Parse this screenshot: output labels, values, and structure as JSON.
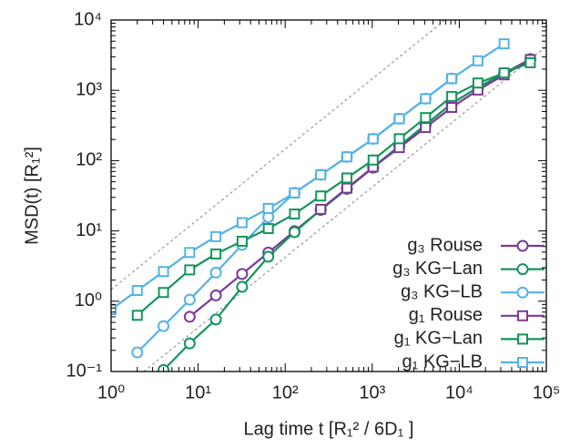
{
  "chart_data": {
    "type": "line",
    "xlabel": "Lag time t  [R₁² / 6D₁ ]",
    "ylabel": "MSD(t)  [R₁²]",
    "xscale": "log",
    "yscale": "log",
    "xlim": [
      1,
      100000
    ],
    "ylim": [
      0.1,
      10000
    ],
    "xticks": [
      {
        "value": 1,
        "label": "10⁰"
      },
      {
        "value": 10,
        "label": "10¹"
      },
      {
        "value": 100,
        "label": "10²"
      },
      {
        "value": 1000,
        "label": "10³"
      },
      {
        "value": 10000,
        "label": "10⁴"
      },
      {
        "value": 100000,
        "label": "10⁵"
      }
    ],
    "yticks": [
      {
        "value": 0.1,
        "label": "10⁻¹"
      },
      {
        "value": 1,
        "label": "10⁰"
      },
      {
        "value": 10,
        "label": "10¹"
      },
      {
        "value": 100,
        "label": "10²"
      },
      {
        "value": 1000,
        "label": "10³"
      },
      {
        "value": 10000,
        "label": "10⁴"
      }
    ],
    "legend": "right",
    "series": [
      {
        "name": "g₃ Rouse",
        "color": "#7b3a98",
        "marker": "circle",
        "x": [
          8,
          16,
          32,
          64,
          128,
          256,
          512,
          1024,
          2048,
          4096,
          8192,
          16384,
          32768,
          65536
        ],
        "values": [
          0.6,
          1.21,
          2.44,
          4.92,
          9.93,
          19.9,
          39.7,
          79.4,
          160,
          322,
          649,
          1100,
          1750,
          2780
        ]
      },
      {
        "name": "g₃ KG−Lan",
        "color": "#14955a",
        "marker": "circle",
        "x": [
          4,
          8,
          16,
          32,
          64,
          128,
          256,
          512,
          1024,
          2048,
          4096,
          8192,
          16384,
          32768,
          65536
        ],
        "values": [
          0.105,
          0.251,
          0.55,
          1.6,
          4.3,
          9.6,
          19.9,
          39.8,
          81,
          162,
          324,
          646,
          1100,
          1740,
          2750
        ]
      },
      {
        "name": "g₃ KG−LB",
        "color": "#55b2e4",
        "marker": "circle",
        "x": [
          2,
          4,
          8,
          16,
          32,
          64,
          128,
          256,
          512,
          1024,
          2048,
          4096,
          8192
        ],
        "values": [
          0.187,
          0.443,
          1.05,
          2.55,
          6.34,
          15.7,
          34.8,
          62.7,
          113,
          204,
          394,
          760,
          1470
        ]
      },
      {
        "name": "g₁ Rouse",
        "color": "#7b3a98",
        "marker": "square",
        "x": [
          256,
          512,
          1024,
          2048,
          4096,
          8192,
          16384,
          32768,
          65536
        ],
        "values": [
          20.3,
          40.6,
          81,
          153,
          296,
          571,
          1010,
          1660,
          2740
        ]
      },
      {
        "name": "g₁ KG−Lan",
        "color": "#14955a",
        "marker": "square",
        "x": [
          2,
          4,
          8,
          16,
          32,
          64,
          128,
          256,
          512,
          1024,
          2048,
          4096,
          8192,
          16384,
          32768,
          65536
        ],
        "values": [
          0.63,
          1.33,
          2.79,
          4.7,
          7.13,
          10.8,
          17.4,
          31.4,
          56.6,
          102,
          205,
          409,
          819,
          1270,
          1770,
          2470
        ]
      },
      {
        "name": "g₁ KG−LB",
        "color": "#55b2e4",
        "marker": "square",
        "x": [
          1,
          2,
          4,
          8,
          16,
          32,
          64,
          128,
          256,
          512,
          1024,
          2048,
          4096,
          8192,
          16384,
          32768
        ],
        "values": [
          0.76,
          1.42,
          2.64,
          4.93,
          8.3,
          13.1,
          20.9,
          34.7,
          62.7,
          113,
          204,
          394,
          760,
          1470,
          2630,
          4590
        ]
      }
    ]
  }
}
